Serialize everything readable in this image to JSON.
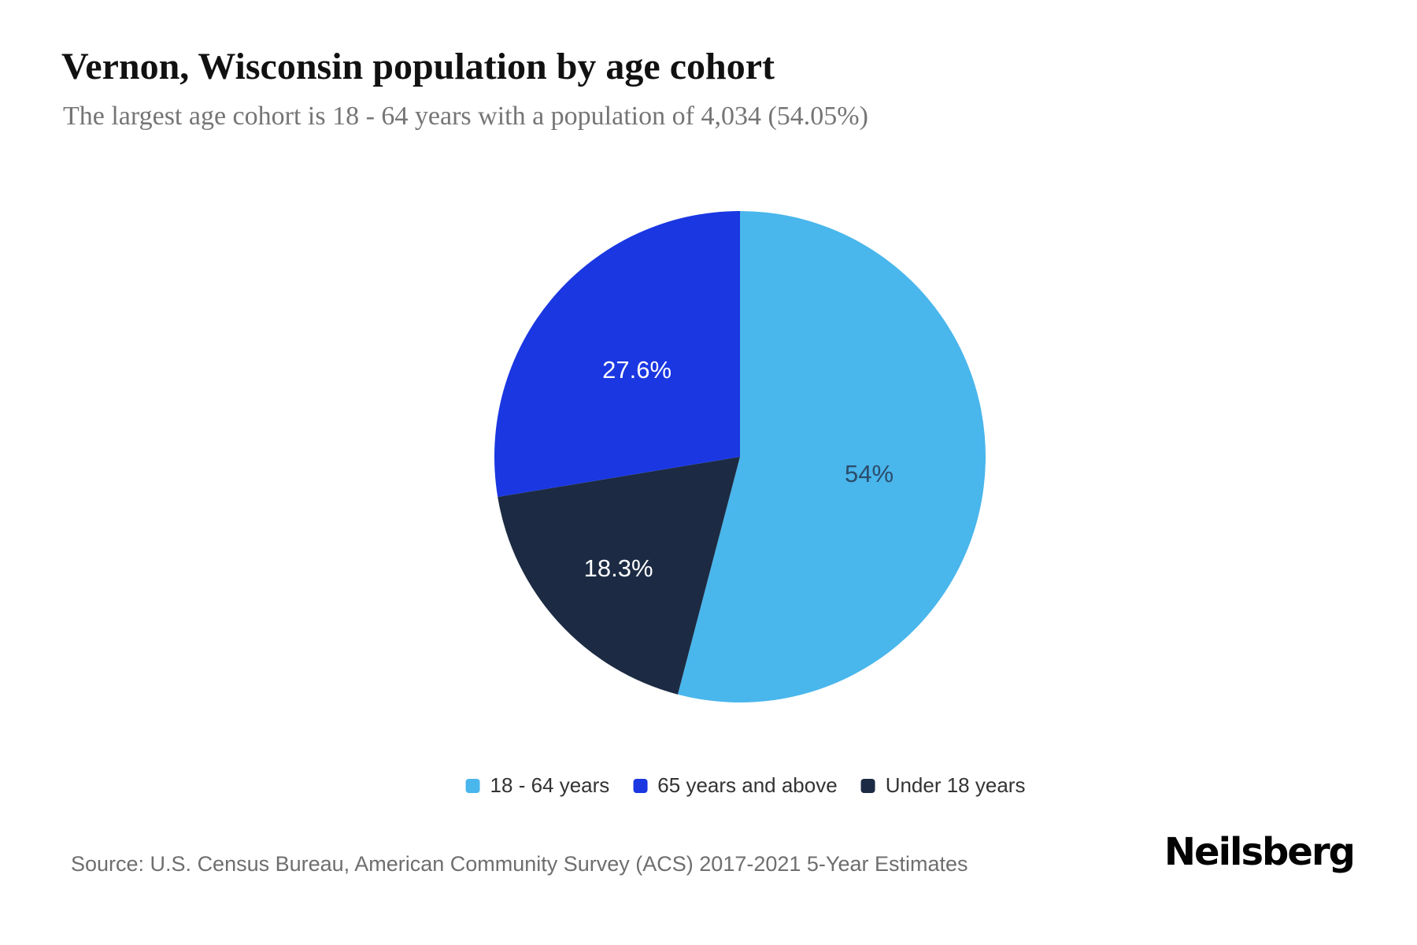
{
  "page": {
    "title": "Vernon, Wisconsin population by age cohort",
    "subtitle": "The largest age cohort is 18 - 64 years with a population of 4,034 (54.05%)",
    "source": "Source: U.S. Census Bureau, American Community Survey (ACS) 2017-2021 5-Year Estimates",
    "brand": "Neilsberg"
  },
  "colors": {
    "background": "#ffffff",
    "slice_18_64": "#49b6ec",
    "slice_65_and_above": "#1a37e2",
    "slice_under_18": "#1c2b43",
    "title_text": "#111111",
    "subtitle_text": "#757575",
    "legend_text": "#333333",
    "source_text": "#6e6e6e",
    "label_on_light_slice": "#2b4c6a",
    "label_on_dark_slice": "#ffffff"
  },
  "chart_data": {
    "type": "pie",
    "title": "Vernon, Wisconsin population by age cohort",
    "start_angle_deg": 0,
    "direction": "clockwise",
    "slices": [
      {
        "label": "18 - 64 years",
        "percent": 54.05,
        "display_label": "54%",
        "population": 4034,
        "color": "#49b6ec",
        "label_color": "#2b4c6a"
      },
      {
        "label": "Under 18 years",
        "percent": 18.3,
        "display_label": "18.3%",
        "color": "#1c2b43",
        "label_color": "#ffffff"
      },
      {
        "label": "65 years and above",
        "percent": 27.6,
        "display_label": "27.6%",
        "color": "#1a37e2",
        "label_color": "#ffffff"
      }
    ],
    "legend": [
      {
        "label": "18 - 64 years",
        "color": "#49b6ec"
      },
      {
        "label": "65 years and above",
        "color": "#1a37e2"
      },
      {
        "label": "Under 18 years",
        "color": "#1c2b43"
      }
    ],
    "legend_position": "bottom-center"
  }
}
